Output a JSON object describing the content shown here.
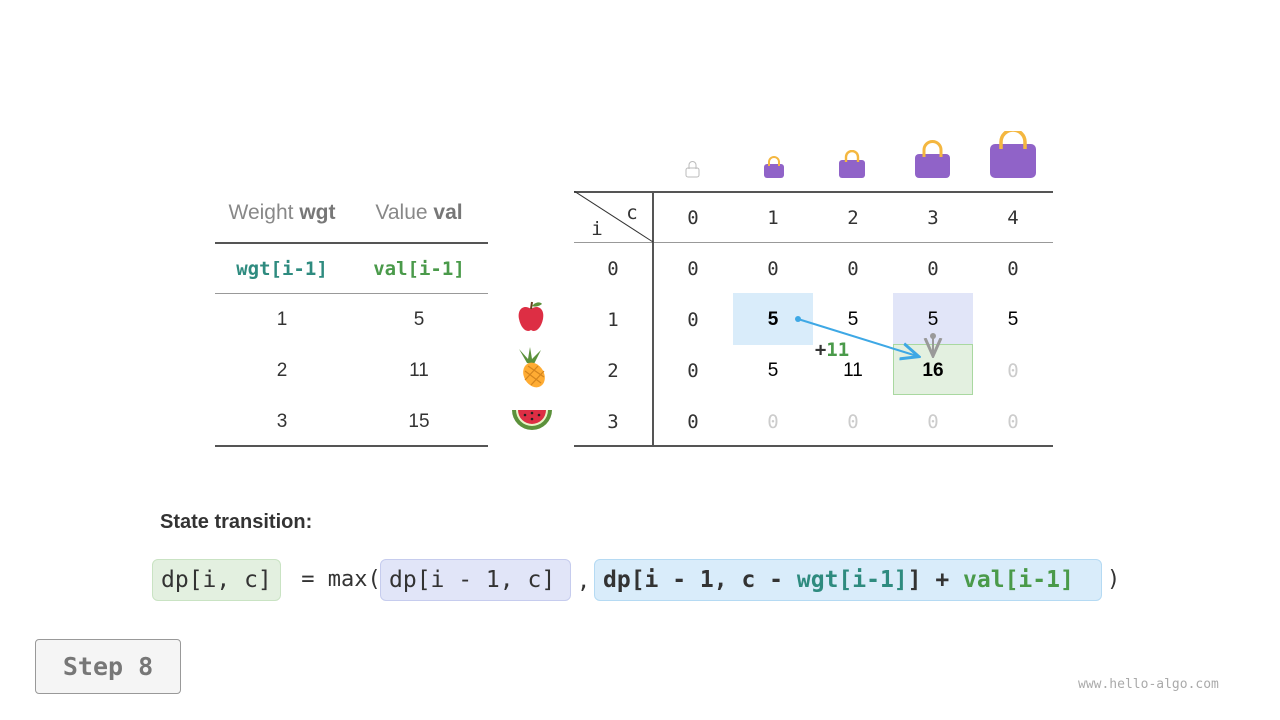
{
  "items_table": {
    "headers": [
      {
        "label": "Weight",
        "code": "wgt"
      },
      {
        "label": "Value",
        "code": "val"
      }
    ],
    "subheaders": [
      "wgt[i-1]",
      "val[i-1]"
    ],
    "rows": [
      {
        "wgt": "1",
        "val": "5",
        "fruit": "apple"
      },
      {
        "wgt": "2",
        "val": "11",
        "fruit": "pineapple"
      },
      {
        "wgt": "3",
        "val": "15",
        "fruit": "watermelon"
      }
    ]
  },
  "dp_table": {
    "corner_c": "c",
    "corner_i": "i",
    "capacities": [
      "0",
      "1",
      "2",
      "3",
      "4"
    ],
    "row_labels": [
      "0",
      "1",
      "2",
      "3"
    ],
    "cells": [
      [
        "0",
        "0",
        "0",
        "0",
        "0"
      ],
      [
        "0",
        "5",
        "5",
        "5",
        "5"
      ],
      [
        "0",
        "5",
        "11",
        "16",
        "0"
      ],
      [
        "0",
        "0",
        "0",
        "0",
        "0"
      ]
    ],
    "increment_label": "+11",
    "increment_value": "11"
  },
  "formula": {
    "title": "State transition:",
    "lhs": "dp[i, c]",
    "eq": " = max(",
    "opt1": "dp[i - 1, c]",
    "comma": ",",
    "opt2_a": "dp[i - 1, c - ",
    "opt2_wgt": "wgt[i-1]",
    "opt2_b": "] + ",
    "opt2_val": "val[i-1]",
    "close": ")"
  },
  "step_button": "Step 8",
  "watermark": "www.hello-algo.com",
  "colors": {
    "teal": "#2e8b7f",
    "green": "#4a9a4a",
    "blue_arrow": "#3ea8e5",
    "bag": "#9063c8",
    "handle": "#f4b740"
  }
}
